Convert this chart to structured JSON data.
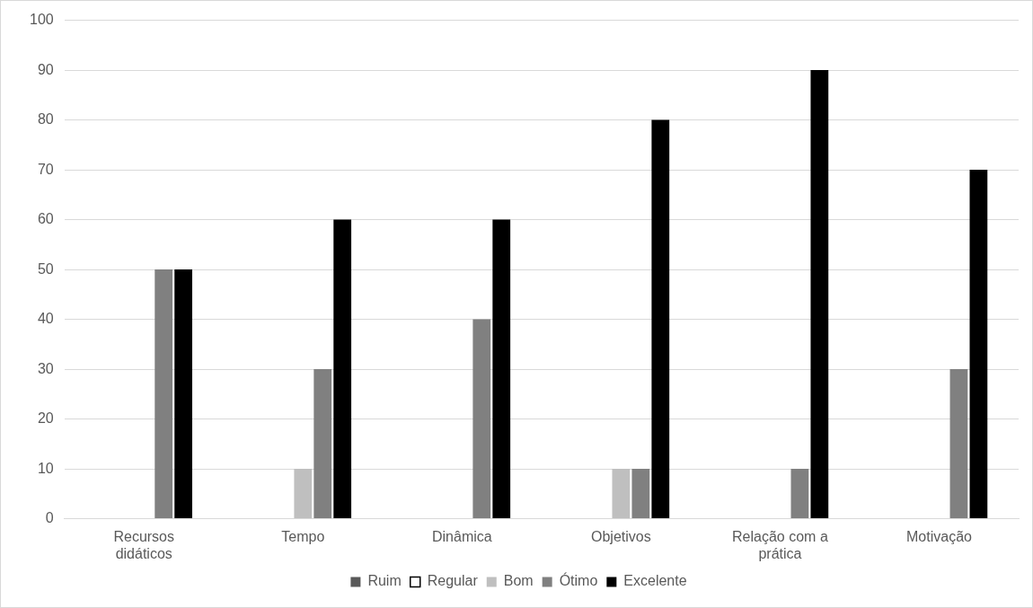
{
  "chart_data": {
    "type": "bar",
    "categories": [
      "Recursos didáticos",
      "Tempo",
      "Dinâmica",
      "Objetivos",
      "Relação com a prática",
      "Motivação"
    ],
    "series": [
      {
        "name": "Ruim",
        "color": "#595959",
        "values": [
          0,
          0,
          0,
          0,
          0,
          0
        ]
      },
      {
        "name": "Regular",
        "color": "#ffffff",
        "values": [
          0,
          0,
          0,
          0,
          0,
          0
        ]
      },
      {
        "name": "Bom",
        "color": "#bfbfbf",
        "values": [
          0,
          10,
          0,
          10,
          0,
          0
        ]
      },
      {
        "name": "Ótimo",
        "color": "#808080",
        "values": [
          50,
          30,
          40,
          10,
          10,
          30
        ]
      },
      {
        "name": "Excelente",
        "color": "#000000",
        "values": [
          50,
          60,
          60,
          80,
          90,
          70
        ]
      }
    ],
    "ylim": [
      0,
      100
    ],
    "yticks": [
      0,
      10,
      20,
      30,
      40,
      50,
      60,
      70,
      80,
      90,
      100
    ],
    "grid": "y",
    "legend": "bottom"
  }
}
